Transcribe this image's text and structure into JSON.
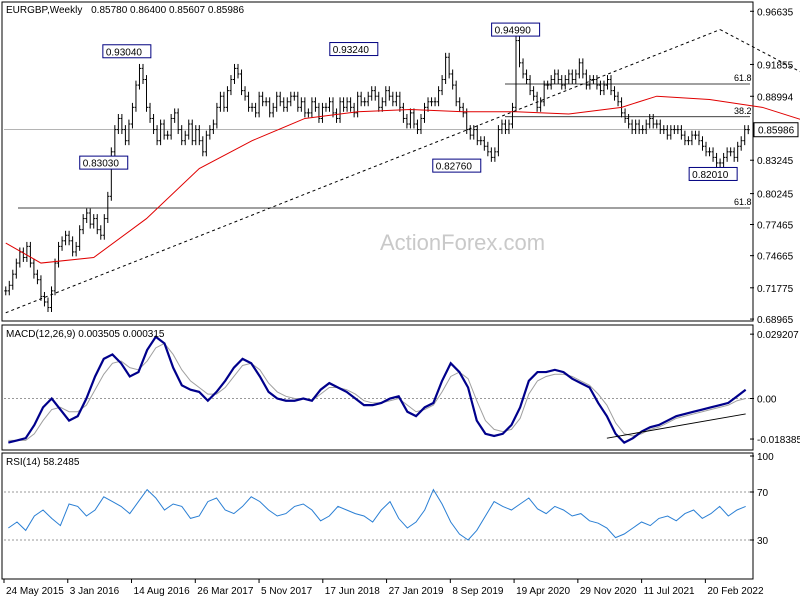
{
  "chart_data": [
    {
      "type": "candlestick",
      "panel": "price",
      "title": "EURGBP,Weekly",
      "ohlc_summary": "0.85780 0.86400 0.85607 0.85986",
      "ylim": [
        0.6897,
        0.9729
      ],
      "y_ticks": [
        "0.96635",
        "0.91855",
        "0.88994",
        "0.85986",
        "0.83245",
        "0.80245",
        "0.77465",
        "0.74665",
        "0.71775",
        "0.68965"
      ],
      "last_price": "0.85986",
      "annotations": [
        {
          "label": "0.93040",
          "x": "2016-09-05",
          "y": 0.9304
        },
        {
          "label": "0.83030",
          "x": "2016-06-20",
          "y": 0.8303
        },
        {
          "label": "0.93240",
          "x": "2018-10-01",
          "y": 0.9324
        },
        {
          "label": "0.82760",
          "x": "2019-09-09",
          "y": 0.8276
        },
        {
          "label": "0.94990",
          "x": "2020-03-23",
          "y": 0.9499
        },
        {
          "label": "0.82010",
          "x": "2022-01-10",
          "y": 0.8201
        }
      ],
      "fib_levels": [
        {
          "label": "61.8",
          "y": 0.901
        },
        {
          "label": "38.2",
          "y": 0.8715
        },
        {
          "label": "61.8",
          "y": 0.7895
        }
      ],
      "close": [
        0.715,
        0.72,
        0.73,
        0.74,
        0.75,
        0.745,
        0.755,
        0.74,
        0.73,
        0.725,
        0.71,
        0.705,
        0.7,
        0.715,
        0.74,
        0.755,
        0.76,
        0.765,
        0.76,
        0.75,
        0.755,
        0.77,
        0.78,
        0.785,
        0.775,
        0.78,
        0.77,
        0.765,
        0.78,
        0.8,
        0.84,
        0.86,
        0.87,
        0.86,
        0.85,
        0.865,
        0.88,
        0.9,
        0.915,
        0.905,
        0.88,
        0.87,
        0.86,
        0.85,
        0.865,
        0.855,
        0.855,
        0.87,
        0.875,
        0.86,
        0.85,
        0.855,
        0.865,
        0.85,
        0.86,
        0.85,
        0.84,
        0.855,
        0.86,
        0.865,
        0.88,
        0.89,
        0.88,
        0.895,
        0.905,
        0.915,
        0.91,
        0.895,
        0.89,
        0.88,
        0.88,
        0.875,
        0.89,
        0.885,
        0.885,
        0.875,
        0.88,
        0.89,
        0.885,
        0.88,
        0.885,
        0.89,
        0.89,
        0.88,
        0.885,
        0.875,
        0.875,
        0.885,
        0.88,
        0.87,
        0.88,
        0.88,
        0.885,
        0.875,
        0.87,
        0.885,
        0.88,
        0.885,
        0.88,
        0.875,
        0.89,
        0.885,
        0.885,
        0.89,
        0.895,
        0.89,
        0.88,
        0.885,
        0.895,
        0.89,
        0.885,
        0.89,
        0.88,
        0.87,
        0.865,
        0.875,
        0.865,
        0.86,
        0.87,
        0.88,
        0.885,
        0.885,
        0.885,
        0.895,
        0.905,
        0.925,
        0.91,
        0.9,
        0.885,
        0.88,
        0.875,
        0.86,
        0.855,
        0.86,
        0.85,
        0.85,
        0.845,
        0.84,
        0.835,
        0.84,
        0.86,
        0.865,
        0.86,
        0.865,
        0.88,
        0.94,
        0.92,
        0.91,
        0.905,
        0.895,
        0.89,
        0.88,
        0.885,
        0.9,
        0.9,
        0.905,
        0.91,
        0.905,
        0.9,
        0.905,
        0.91,
        0.905,
        0.91,
        0.92,
        0.91,
        0.9,
        0.905,
        0.905,
        0.9,
        0.895,
        0.9,
        0.905,
        0.895,
        0.89,
        0.885,
        0.875,
        0.87,
        0.865,
        0.86,
        0.865,
        0.86,
        0.86,
        0.865,
        0.87,
        0.865,
        0.865,
        0.86,
        0.86,
        0.855,
        0.86,
        0.86,
        0.86,
        0.855,
        0.85,
        0.85,
        0.855,
        0.855,
        0.85,
        0.845,
        0.84,
        0.84,
        0.835,
        0.83,
        0.83,
        0.835,
        0.84,
        0.84,
        0.835,
        0.845,
        0.85,
        0.86,
        0.8599
      ],
      "ma": {
        "name": "MA",
        "color": "#e00000",
        "points": [
          [
            0,
            0.758
          ],
          [
            10,
            0.74
          ],
          [
            25,
            0.745
          ],
          [
            40,
            0.78
          ],
          [
            55,
            0.825
          ],
          [
            70,
            0.85
          ],
          [
            85,
            0.87
          ],
          [
            100,
            0.876
          ],
          [
            115,
            0.878
          ],
          [
            130,
            0.876
          ],
          [
            145,
            0.876
          ],
          [
            160,
            0.874
          ],
          [
            175,
            0.88
          ],
          [
            185,
            0.89
          ],
          [
            200,
            0.887
          ],
          [
            215,
            0.88
          ],
          [
            230,
            0.865
          ],
          [
            245,
            0.852
          ],
          [
            255,
            0.848
          ]
        ]
      },
      "trendlines": [
        {
          "name": "rising-support",
          "style": "dashed",
          "points": [
            [
              0,
              0.6953
            ],
            [
              203,
              0.9499
            ]
          ]
        },
        {
          "name": "falling-resistance",
          "style": "dashed",
          "points": [
            [
              203,
              0.9499
            ],
            [
              245,
              0.88
            ]
          ]
        }
      ],
      "x_ticks": [
        "24 May 2015",
        "3 Jan 2016",
        "14 Aug 2016",
        "26 Mar 2017",
        "5 Nov 2017",
        "17 Jun 2018",
        "27 Jan 2019",
        "8 Sep 2019",
        "19 Apr 2020",
        "29 Nov 2020",
        "11 Jul 2021",
        "20 Feb 2022"
      ],
      "watermark": "ActionForex.com"
    },
    {
      "type": "line",
      "panel": "macd",
      "title": "MACD(12,26,9) 0.003505 0.000315",
      "ylim": [
        -0.022,
        0.032
      ],
      "y_ticks": [
        "0.029207",
        "0.00",
        "-0.018385"
      ],
      "series": [
        {
          "name": "MACD",
          "color": "#00008b",
          "values": [
            -0.02,
            -0.019,
            -0.018,
            -0.012,
            -0.004,
            0.0,
            -0.005,
            -0.01,
            -0.008,
            0.0,
            0.01,
            0.018,
            0.02,
            0.016,
            0.01,
            0.012,
            0.022,
            0.028,
            0.025,
            0.014,
            0.006,
            0.004,
            0.003,
            -0.001,
            0.003,
            0.008,
            0.014,
            0.018,
            0.016,
            0.01,
            0.003,
            0.0,
            -0.001,
            -0.001,
            0.0,
            -0.001,
            0.004,
            0.007,
            0.005,
            0.003,
            0.0,
            -0.003,
            -0.003,
            -0.002,
            0.0,
            0.001,
            -0.006,
            -0.008,
            -0.004,
            -0.002,
            0.008,
            0.016,
            0.012,
            0.005,
            -0.01,
            -0.016,
            -0.017,
            -0.016,
            -0.012,
            -0.004,
            0.008,
            0.012,
            0.012,
            0.013,
            0.012,
            0.009,
            0.007,
            0.005,
            -0.002,
            -0.008,
            -0.016,
            -0.02,
            -0.018,
            -0.015,
            -0.013,
            -0.012,
            -0.01,
            -0.008,
            -0.007,
            -0.006,
            -0.005,
            -0.004,
            -0.003,
            -0.002,
            0.001,
            0.004
          ]
        },
        {
          "name": "Signal",
          "color": "#a0a0a0",
          "values": [
            -0.019,
            -0.019,
            -0.019,
            -0.016,
            -0.01,
            -0.005,
            -0.004,
            -0.006,
            -0.006,
            -0.003,
            0.004,
            0.011,
            0.016,
            0.017,
            0.014,
            0.013,
            0.017,
            0.023,
            0.025,
            0.02,
            0.013,
            0.008,
            0.005,
            0.002,
            0.002,
            0.005,
            0.01,
            0.015,
            0.016,
            0.013,
            0.007,
            0.003,
            0.001,
            0.0,
            0.0,
            -0.001,
            0.002,
            0.005,
            0.005,
            0.004,
            0.002,
            -0.001,
            -0.002,
            -0.002,
            -0.001,
            0.0,
            -0.003,
            -0.006,
            -0.005,
            -0.003,
            0.003,
            0.01,
            0.012,
            0.009,
            -0.001,
            -0.01,
            -0.014,
            -0.015,
            -0.014,
            -0.009,
            0.002,
            0.008,
            0.01,
            0.011,
            0.011,
            0.01,
            0.008,
            0.006,
            0.002,
            -0.003,
            -0.011,
            -0.016,
            -0.017,
            -0.016,
            -0.014,
            -0.013,
            -0.011,
            -0.009,
            -0.008,
            -0.007,
            -0.006,
            -0.005,
            -0.004,
            -0.003,
            -0.001,
            0.0
          ]
        }
      ],
      "trendline": {
        "name": "rising-support",
        "points": [
          [
            69,
            -0.018
          ],
          [
            85,
            -0.007
          ]
        ]
      }
    },
    {
      "type": "line",
      "panel": "rsi",
      "title": "RSI(14) 58.2485",
      "ylim": [
        0,
        100
      ],
      "y_ticks": [
        "100",
        "70",
        "30"
      ],
      "levels": [
        70,
        30
      ],
      "series": [
        {
          "name": "RSI",
          "color": "#2a7fd4",
          "values": [
            40,
            45,
            38,
            50,
            55,
            48,
            42,
            60,
            58,
            50,
            55,
            66,
            62,
            58,
            52,
            62,
            72,
            65,
            55,
            60,
            58,
            48,
            50,
            62,
            65,
            55,
            52,
            58,
            66,
            62,
            55,
            50,
            52,
            58,
            60,
            55,
            46,
            50,
            58,
            55,
            52,
            50,
            45,
            55,
            62,
            48,
            40,
            45,
            55,
            72,
            60,
            45,
            35,
            30,
            38,
            50,
            62,
            58,
            55,
            60,
            65,
            56,
            52,
            58,
            55,
            50,
            52,
            46,
            44,
            40,
            32,
            35,
            40,
            45,
            42,
            48,
            50,
            46,
            52,
            55,
            48,
            52,
            58,
            50,
            55,
            58
          ]
        }
      ]
    }
  ]
}
